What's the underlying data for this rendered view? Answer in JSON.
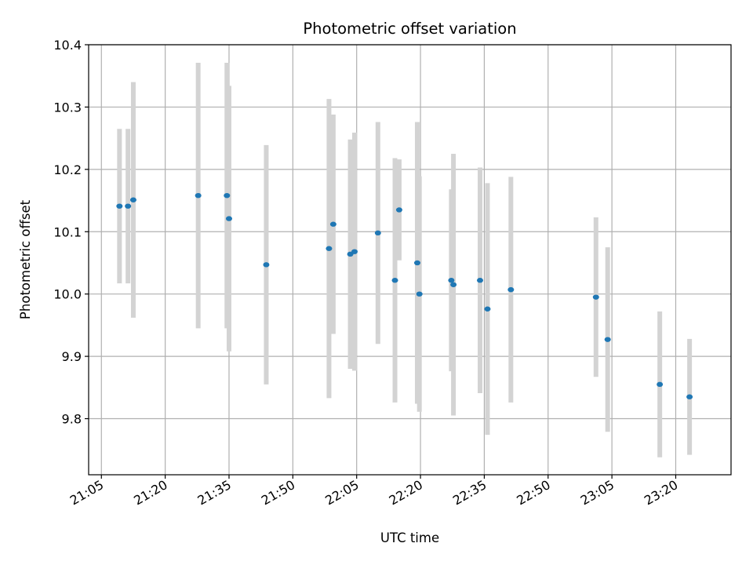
{
  "chart_data": {
    "type": "scatter",
    "title": "Photometric offset variation",
    "xlabel": "UTC time",
    "ylabel": "Photometric offset",
    "grid": true,
    "xlim": [
      "21:02",
      "23:33"
    ],
    "ylim": [
      9.71,
      10.4
    ],
    "x_ticks": [
      "21:05",
      "21:20",
      "21:35",
      "21:50",
      "22:05",
      "22:20",
      "22:35",
      "22:50",
      "23:05",
      "23:20"
    ],
    "y_ticks": [
      "9.8",
      "9.9",
      "10.0",
      "10.1",
      "10.2",
      "10.3",
      "10.4"
    ],
    "colors": {
      "point": "#1f77b4",
      "errorbar": "#d3d3d3",
      "grid": "#b0b0b0",
      "axes": "#000000"
    },
    "series": [
      {
        "points": [
          {
            "time": "21:09:15",
            "value": 10.141,
            "error": 0.124
          },
          {
            "time": "21:11:15",
            "value": 10.141,
            "error": 0.124
          },
          {
            "time": "21:12:30",
            "value": 10.151,
            "error": 0.189
          },
          {
            "time": "21:27:45",
            "value": 10.158,
            "error": 0.213
          },
          {
            "time": "21:34:30",
            "value": 10.158,
            "error": 0.213
          },
          {
            "time": "21:35:00",
            "value": 10.121,
            "error": 0.213
          },
          {
            "time": "21:43:45",
            "value": 10.047,
            "error": 0.192
          },
          {
            "time": "21:58:30",
            "value": 10.073,
            "error": 0.24
          },
          {
            "time": "21:59:30",
            "value": 10.112,
            "error": 0.176
          },
          {
            "time": "22:03:30",
            "value": 10.064,
            "error": 0.184
          },
          {
            "time": "22:04:30",
            "value": 10.068,
            "error": 0.191
          },
          {
            "time": "22:10:00",
            "value": 10.098,
            "error": 0.178
          },
          {
            "time": "22:14:00",
            "value": 10.022,
            "error": 0.196
          },
          {
            "time": "22:15:00",
            "value": 10.135,
            "error": 0.081
          },
          {
            "time": "22:19:15",
            "value": 10.05,
            "error": 0.226
          },
          {
            "time": "22:19:45",
            "value": 10.0,
            "error": 0.189
          },
          {
            "time": "22:27:15",
            "value": 10.022,
            "error": 0.146
          },
          {
            "time": "22:27:45",
            "value": 10.015,
            "error": 0.21
          },
          {
            "time": "22:34:00",
            "value": 10.022,
            "error": 0.181
          },
          {
            "time": "22:35:45",
            "value": 9.976,
            "error": 0.202
          },
          {
            "time": "22:41:15",
            "value": 10.007,
            "error": 0.181
          },
          {
            "time": "23:01:15",
            "value": 9.995,
            "error": 0.128
          },
          {
            "time": "23:04:00",
            "value": 9.927,
            "error": 0.148
          },
          {
            "time": "23:16:15",
            "value": 9.855,
            "error": 0.117
          },
          {
            "time": "23:23:15",
            "value": 9.835,
            "error": 0.093
          }
        ]
      }
    ]
  }
}
